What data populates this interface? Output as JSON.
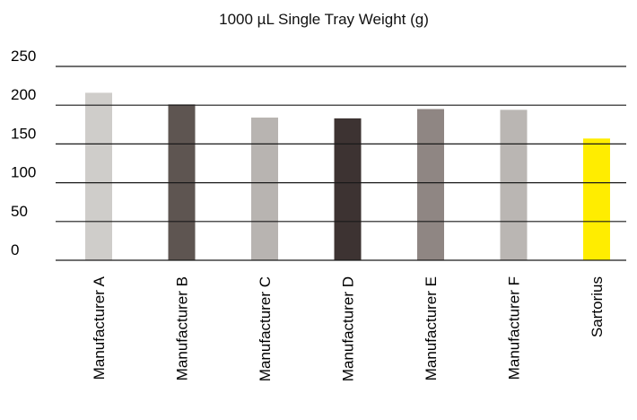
{
  "chart_data": {
    "type": "bar",
    "title": "1000 µL Single Tray Weight (g)",
    "xlabel": "",
    "ylabel": "",
    "categories": [
      "Manufacturer A",
      "Manufacturer B",
      "Manufacturer C",
      "Manufacturer D",
      "Manufacturer E",
      "Manufacturer F",
      "Sartorius"
    ],
    "values": [
      216,
      201,
      184,
      183,
      195,
      194,
      157
    ],
    "ylim": [
      0,
      250
    ],
    "yticks": [
      0,
      50,
      100,
      150,
      200,
      250
    ],
    "grid": true,
    "legend": "none",
    "bar_colors": [
      "#cfcdca",
      "#5e5551",
      "#b8b4b1",
      "#3d3332",
      "#8f8683",
      "#bab6b3",
      "#ffed00"
    ]
  }
}
